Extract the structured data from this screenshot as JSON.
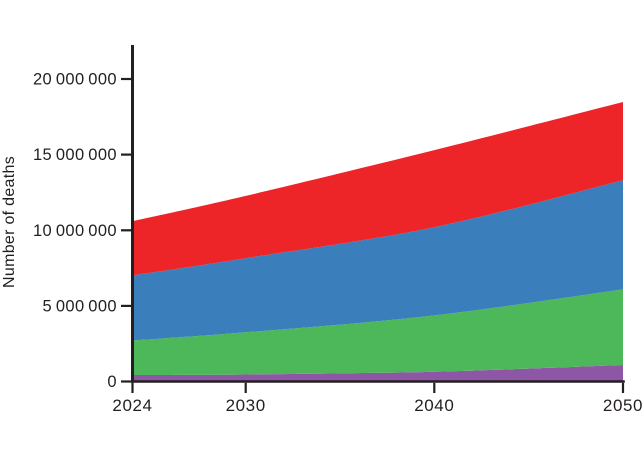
{
  "figure": {
    "background": "#FFFFFF",
    "axis_color": "#231F20",
    "text_color": "#231F20"
  },
  "chart_data": {
    "type": "area",
    "stacked": true,
    "title": "",
    "xlabel": "",
    "ylabel": "Number of deaths",
    "x": [
      2024,
      2030,
      2040,
      2050
    ],
    "xtick_labels": [
      "2024",
      "2030",
      "2040",
      "2050"
    ],
    "yticks": [
      0,
      5000000,
      10000000,
      15000000,
      20000000
    ],
    "ytick_labels": [
      "0",
      "5 000 000",
      "10 000 000",
      "15 000 000",
      "20 000 000"
    ],
    "ylim": [
      0,
      22250000
    ],
    "grid": false,
    "legend": false,
    "series": [
      {
        "name": "purple",
        "color": "#8D57A6",
        "values": [
          430000,
          460000,
          650000,
          1090000
        ]
      },
      {
        "name": "green",
        "color": "#4DB85A",
        "values": [
          2280000,
          2790000,
          3720000,
          5000000
        ]
      },
      {
        "name": "blue",
        "color": "#3A7FBC",
        "values": [
          4310000,
          4900000,
          5830000,
          7220000
        ]
      },
      {
        "name": "red",
        "color": "#ED2428",
        "values": [
          3580000,
          4120000,
          5100000,
          5170000
        ]
      }
    ],
    "stack_totals": [
      10600000,
      12270000,
      15300000,
      18480000
    ]
  }
}
